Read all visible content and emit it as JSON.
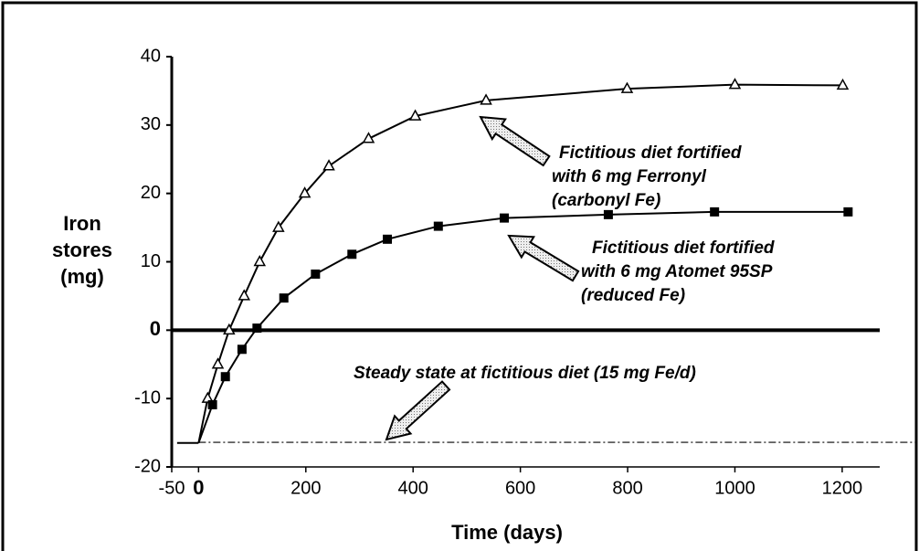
{
  "chart_data": {
    "type": "line",
    "y_label": [
      "Iron",
      "stores",
      "(mg)"
    ],
    "x_label": "Time (days)",
    "xlim": [
      -50,
      1270
    ],
    "xticks": [
      -50,
      0,
      200,
      400,
      600,
      800,
      1000,
      1200
    ],
    "ylim": [
      -20,
      40
    ],
    "yticks": [
      -20,
      -10,
      0,
      10,
      20,
      30,
      40
    ],
    "start_segment": {
      "x": [
        -40,
        0
      ],
      "values": [
        -16.5,
        -16.5
      ]
    },
    "steady_state": {
      "value": -16.4,
      "label": "Steady state at fictitious diet (15 mg Fe/d)"
    },
    "series": [
      {
        "name": [
          "Fictitious diet fortified",
          "with 6 mg Ferronyl",
          "(carbonyl Fe)"
        ],
        "marker": "triangle",
        "color": "#000000",
        "x": [
          17,
          36,
          57,
          85,
          114,
          149,
          198,
          243,
          317,
          404,
          536,
          799,
          1000,
          1201
        ],
        "values": [
          -10,
          -5,
          0,
          5,
          10,
          15,
          20,
          24,
          28,
          31.3,
          33.6,
          35.3,
          35.9,
          35.8
        ]
      },
      {
        "name": [
          "Fictitious diet fortified",
          "with 6 mg Atomet 95SP",
          "(reduced Fe)"
        ],
        "marker": "square",
        "color": "#000000",
        "x": [
          26,
          50,
          81,
          109,
          159,
          218,
          286,
          352,
          447,
          570,
          764,
          962,
          1211
        ],
        "values": [
          -10.9,
          -6.8,
          -2.8,
          0.3,
          4.7,
          8.2,
          11.1,
          13.3,
          15.2,
          16.4,
          16.9,
          17.3,
          17.3
        ]
      }
    ]
  }
}
